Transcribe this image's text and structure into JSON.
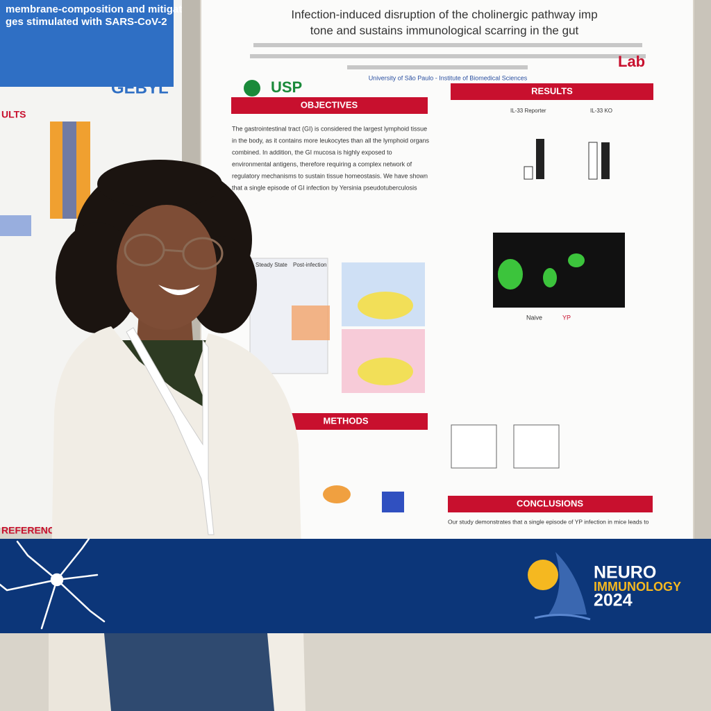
{
  "left_poster": {
    "title_fragment": "membrane-composition and mitigates",
    "subtitle_fragment": "ges stimulated with SARS-CoV-2",
    "logo": "GEBYL",
    "section_results": "ULTS",
    "section_references": "REFERENC"
  },
  "poster": {
    "title_line1": "Infection-induced disruption of the cholinergic pathway imp",
    "title_line2": "tone and sustains immunological scarring in the gut",
    "affiliation": "University of São Paulo - Institute of Biomedical Sciences",
    "logo_usp": "USP",
    "logo_lab": "Lab",
    "sections": {
      "objectives": "OBJECTIVES",
      "results": "RESULTS",
      "methods": "METHODS",
      "conclusions": "CONCLUSIONS"
    },
    "objectives_lines": [
      "The gastrointestinal tract (GI) is considered the largest lymphoid tissue",
      "in the body, as it contains more leukocytes than all the lymphoid organs",
      "combined. In addition, the GI mucosa is highly exposed to",
      "environmental antigens, therefore requiring a complex network of",
      "regulatory mechanisms to sustain tissue homeostasis. We have shown",
      "that a single episode of GI infection by Yersinia pseudotuberculosis"
    ],
    "figure_labels": {
      "il33_reporter": "IL-33 Reporter",
      "il33_ko": "IL-33 KO",
      "naive": "Naive",
      "yp": "YP",
      "steady_state": "Steady State",
      "post_infection": "Post-infection"
    },
    "conclusions_line": "Our study demonstrates that a single episode of YP infection in mice leads to"
  },
  "banner": {
    "word1": "NEURO",
    "word2": "IMMUNOLOGY",
    "year": "2024"
  }
}
